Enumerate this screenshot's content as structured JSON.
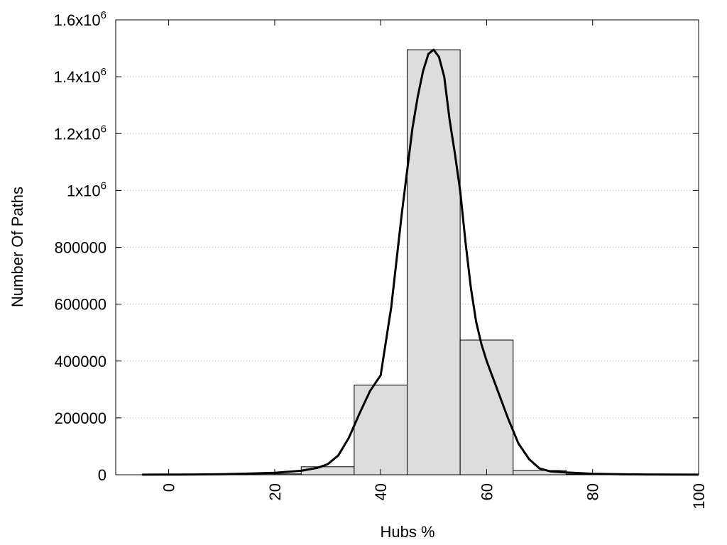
{
  "chart_data": {
    "type": "bar",
    "title": "",
    "xlabel": "Hubs %",
    "ylabel": "Number Of Paths",
    "xlim": [
      -10,
      100
    ],
    "ylim": [
      0,
      1600000
    ],
    "grid": "horizontal dotted",
    "legend": "none",
    "x_ticks": [
      {
        "value": 0,
        "label": "0"
      },
      {
        "value": 20,
        "label": "20"
      },
      {
        "value": 40,
        "label": "40"
      },
      {
        "value": 60,
        "label": "60"
      },
      {
        "value": 80,
        "label": "80"
      },
      {
        "value": 100,
        "label": "100"
      }
    ],
    "y_ticks": [
      {
        "value": 0,
        "base": "0",
        "exp": ""
      },
      {
        "value": 200000,
        "base": "200000",
        "exp": ""
      },
      {
        "value": 400000,
        "base": "400000",
        "exp": ""
      },
      {
        "value": 600000,
        "base": "600000",
        "exp": ""
      },
      {
        "value": 800000,
        "base": "800000",
        "exp": ""
      },
      {
        "value": 1000000,
        "base": "1x10",
        "exp": "6"
      },
      {
        "value": 1200000,
        "base": "1.2x10",
        "exp": "6"
      },
      {
        "value": 1400000,
        "base": "1.4x10",
        "exp": "6"
      },
      {
        "value": 1600000,
        "base": "1.6x10",
        "exp": "6"
      }
    ],
    "bars": [
      {
        "from": -5,
        "to": 5,
        "value": 1500
      },
      {
        "from": 5,
        "to": 15,
        "value": 1000
      },
      {
        "from": 15,
        "to": 25,
        "value": 3000
      },
      {
        "from": 25,
        "to": 35,
        "value": 28000
      },
      {
        "from": 35,
        "to": 45,
        "value": 315000
      },
      {
        "from": 45,
        "to": 55,
        "value": 1495000
      },
      {
        "from": 55,
        "to": 65,
        "value": 474000
      },
      {
        "from": 65,
        "to": 75,
        "value": 15000
      },
      {
        "from": 75,
        "to": 85,
        "value": 2000
      },
      {
        "from": 85,
        "to": 95,
        "value": 1000
      }
    ],
    "curve": {
      "x": [
        -5,
        0,
        5,
        10,
        15,
        20,
        25,
        28,
        30,
        32,
        34,
        36,
        38,
        40,
        42,
        44,
        45,
        46,
        47,
        48,
        49,
        50,
        51,
        52,
        53,
        54,
        55,
        56,
        57,
        58,
        59,
        60,
        62,
        64,
        66,
        68,
        70,
        72,
        75,
        80,
        85,
        90,
        95,
        100
      ],
      "y": [
        200,
        500,
        1000,
        2000,
        4000,
        7000,
        14000,
        24000,
        37000,
        68000,
        130000,
        215000,
        295000,
        350000,
        590000,
        920000,
        1070000,
        1220000,
        1330000,
        1420000,
        1480000,
        1495000,
        1470000,
        1400000,
        1250000,
        1130000,
        1000000,
        820000,
        660000,
        540000,
        460000,
        400000,
        300000,
        200000,
        110000,
        55000,
        22000,
        12000,
        8000,
        3500,
        1800,
        900,
        500,
        200
      ]
    },
    "colors": {
      "bar_fill": "#dddddd",
      "bar_stroke": "#000000",
      "curve": "#000000",
      "grid": "#bbbbbb"
    }
  }
}
